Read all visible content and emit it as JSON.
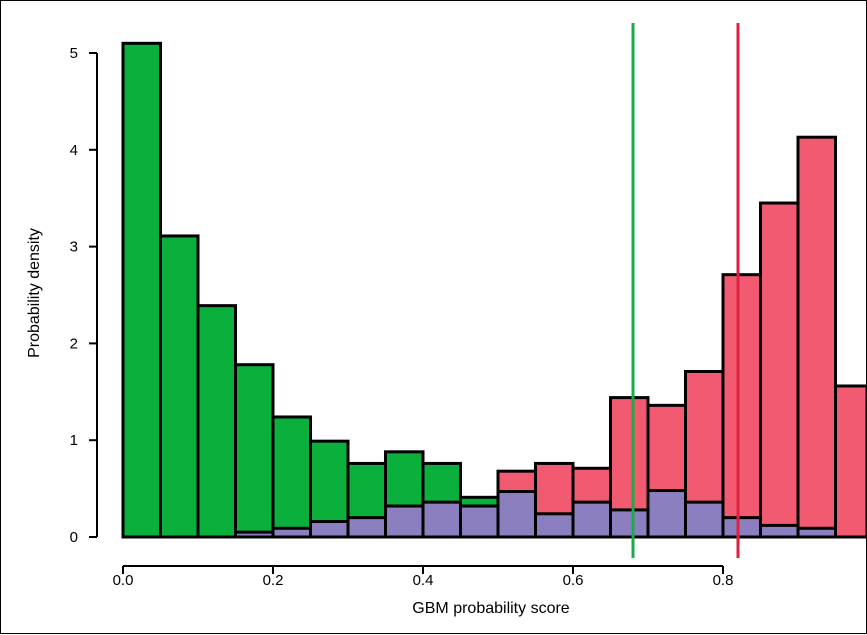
{
  "chart_data": {
    "type": "bar",
    "xlabel": "GBM probability score",
    "ylabel": "Probability density",
    "xlim": [
      0.0,
      0.98
    ],
    "ylim": [
      0,
      5.3
    ],
    "xticks": [
      "0.0",
      "0.2",
      "0.4",
      "0.6",
      "0.8"
    ],
    "yticks": [
      "0",
      "1",
      "2",
      "3",
      "4",
      "5"
    ],
    "bin_width": 0.05,
    "bins_start": [
      0.0,
      0.05,
      0.1,
      0.15,
      0.2,
      0.25,
      0.3,
      0.35,
      0.4,
      0.45,
      0.5,
      0.55,
      0.6,
      0.65,
      0.7,
      0.75,
      0.8,
      0.85,
      0.9,
      0.95
    ],
    "series": [
      {
        "color": "#0aaf3c",
        "values": [
          5.1,
          3.11,
          2.39,
          1.78,
          1.24,
          0.99,
          0.76,
          0.88,
          0.76,
          0.41,
          0,
          0,
          0,
          0,
          0,
          0,
          0,
          0,
          0,
          0
        ]
      },
      {
        "color": "#f25a72",
        "values": [
          0,
          0,
          0,
          0,
          0,
          0,
          0,
          0,
          0,
          0,
          0.68,
          0.76,
          0.71,
          1.44,
          1.36,
          1.71,
          2.71,
          3.45,
          4.13,
          1.56
        ]
      },
      {
        "color": "#8b7fc0",
        "values": [
          0,
          0,
          0,
          0.05,
          0.09,
          0.16,
          0.2,
          0.32,
          0.36,
          0.32,
          0.47,
          0.24,
          0.36,
          0.28,
          0.48,
          0.36,
          0.2,
          0.12,
          0.09,
          0
        ]
      }
    ],
    "vlines": [
      {
        "x": 0.68,
        "color": "#1aaa4a"
      },
      {
        "x": 0.82,
        "color": "#e0203f"
      }
    ],
    "grid": false,
    "legend": "none"
  }
}
